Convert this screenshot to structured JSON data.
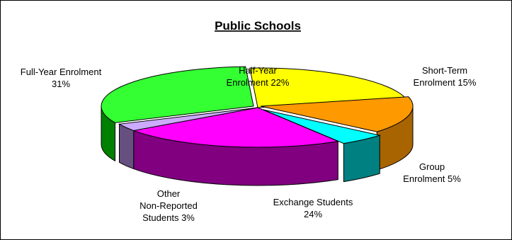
{
  "chart_data": {
    "type": "pie",
    "style": "3d-exploded",
    "title": "Public Schools",
    "legend": "none",
    "slices": [
      {
        "key": "halfyear",
        "label_lines": [
          "Half-Year",
          "Enrolment 22%"
        ],
        "value": 22,
        "color": "#ffff00",
        "side_color": "#9a9a00"
      },
      {
        "key": "shortterm",
        "label_lines": [
          "Short-Term",
          "Enrolment 15%"
        ],
        "value": 15,
        "color": "#ff9900",
        "side_color": "#a86400"
      },
      {
        "key": "group",
        "label_lines": [
          "Group",
          "Enrolment 5%"
        ],
        "value": 5,
        "color": "#00ffff",
        "side_color": "#008080"
      },
      {
        "key": "exchange",
        "label_lines": [
          "Exchange Students",
          "24%"
        ],
        "value": 24,
        "color": "#ff00ff",
        "side_color": "#800080"
      },
      {
        "key": "other",
        "label_lines": [
          "Other",
          "Non-Reported",
          "Students 3%"
        ],
        "value": 3,
        "color": "#ccaaff",
        "side_color": "#665080"
      },
      {
        "key": "fullyear",
        "label_lines": [
          "Full-Year Enrolment",
          "31%"
        ],
        "value": 31,
        "color": "#33ff33",
        "side_color": "#008000"
      }
    ]
  }
}
